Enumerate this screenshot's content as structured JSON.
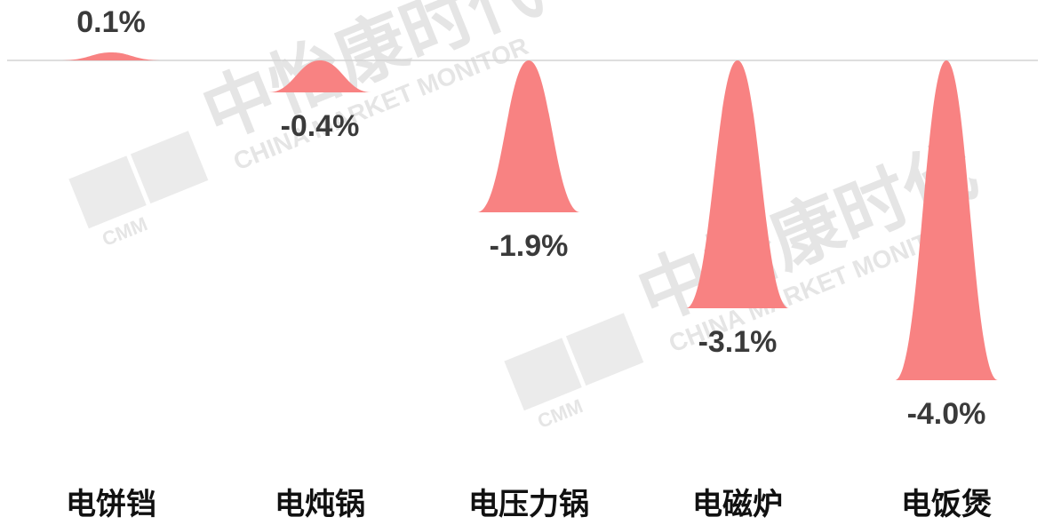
{
  "chart_data": {
    "type": "bell",
    "categories": [
      "电饼铛",
      "电炖锅",
      "电压力锅",
      "电磁炉",
      "电饭煲"
    ],
    "values": [
      0.1,
      -0.4,
      -1.9,
      -3.1,
      -4.0
    ],
    "value_labels": [
      "0.1%",
      "-0.4%",
      "-1.9%",
      "-3.1%",
      "-4.0%"
    ],
    "color": "#f88282",
    "watermark": {
      "name": "中怡康时代",
      "subtitle": "CHINA MARKET MONITOR",
      "logo": "CMM"
    }
  }
}
